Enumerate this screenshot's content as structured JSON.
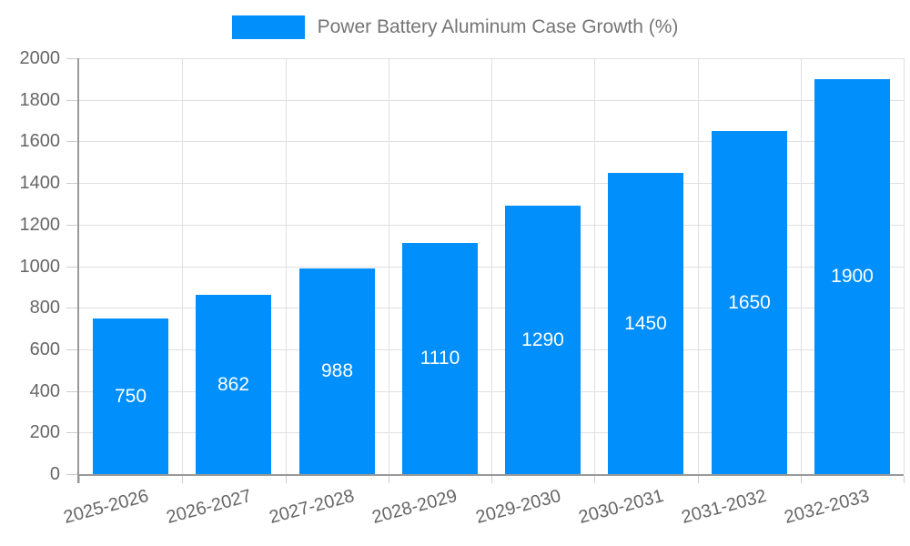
{
  "legend": {
    "label": "Power Battery Aluminum Case Growth (%)"
  },
  "chart_data": {
    "type": "bar",
    "title": "Power Battery Aluminum Case Growth (%)",
    "series_name": "Power Battery Aluminum Case Growth (%)",
    "categories": [
      "2025-2026",
      "2026-2027",
      "2027-2028",
      "2028-2029",
      "2029-2030",
      "2030-2031",
      "2031-2032",
      "2032-2033"
    ],
    "values": [
      750,
      862,
      988,
      1110,
      1290,
      1450,
      1650,
      1900
    ],
    "value_labels": [
      "750",
      "862",
      "988",
      "1110",
      "1290",
      "1450",
      "1650",
      "1900"
    ],
    "y_tick_labels": [
      "0",
      "200",
      "400",
      "600",
      "800",
      "1000",
      "1200",
      "1400",
      "1600",
      "1800",
      "2000"
    ],
    "xlabel": "",
    "ylabel": "",
    "ylim": [
      0,
      2000
    ],
    "ytick_step": 200,
    "grid": true,
    "legend_position": "top",
    "x_label_rotation_deg": -15,
    "colors": {
      "bar": "#008FFB",
      "value_text": "#FFFFFF",
      "axis_text": "#666666",
      "legend_text": "#757575",
      "gridline": "#E0E0E0",
      "tick": "#CCCCCC",
      "axis_line": "#999999",
      "background": "#FFFFFF"
    }
  }
}
